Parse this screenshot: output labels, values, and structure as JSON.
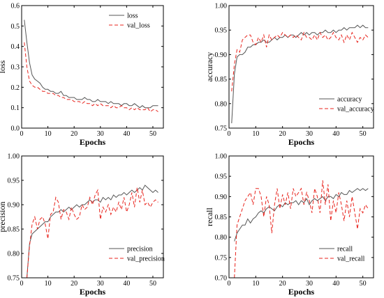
{
  "chart_data": [
    {
      "type": "line",
      "xlabel": "Epochs",
      "ylabel": "loss",
      "xlim": [
        0,
        54
      ],
      "ylim": [
        0.0,
        0.6
      ],
      "xticks": [
        0,
        10,
        20,
        30,
        40,
        50
      ],
      "yticks": [
        0.0,
        0.1,
        0.2,
        0.3,
        0.4,
        0.5,
        0.6
      ],
      "ytick_labels": [
        "0.0",
        "0.1",
        "0.2",
        "0.3",
        "0.4",
        "0.5",
        "0.6"
      ],
      "legend_position": "top-right",
      "series": [
        {
          "name": "loss",
          "color": "#555555",
          "style": "solid",
          "x": [
            1,
            2,
            3,
            4,
            5,
            6,
            7,
            8,
            9,
            10,
            11,
            12,
            13,
            14,
            15,
            16,
            17,
            18,
            19,
            20,
            21,
            22,
            23,
            24,
            25,
            26,
            27,
            28,
            29,
            30,
            31,
            32,
            33,
            34,
            35,
            36,
            37,
            38,
            39,
            40,
            41,
            42,
            43,
            44,
            45,
            46,
            47,
            48,
            49,
            50,
            51,
            52
          ],
          "y": [
            0.53,
            0.42,
            0.32,
            0.26,
            0.24,
            0.23,
            0.22,
            0.2,
            0.19,
            0.19,
            0.18,
            0.18,
            0.17,
            0.17,
            0.18,
            0.16,
            0.16,
            0.15,
            0.15,
            0.15,
            0.14,
            0.14,
            0.14,
            0.15,
            0.14,
            0.14,
            0.13,
            0.13,
            0.14,
            0.13,
            0.13,
            0.13,
            0.12,
            0.13,
            0.12,
            0.12,
            0.12,
            0.11,
            0.12,
            0.12,
            0.11,
            0.11,
            0.12,
            0.11,
            0.1,
            0.11,
            0.1,
            0.1,
            0.1,
            0.11,
            0.11,
            0.11
          ]
        },
        {
          "name": "val_loss",
          "color": "#e8231c",
          "style": "dashed",
          "x": [
            1,
            2,
            3,
            4,
            5,
            6,
            7,
            8,
            9,
            10,
            11,
            12,
            13,
            14,
            15,
            16,
            17,
            18,
            19,
            20,
            21,
            22,
            23,
            24,
            25,
            26,
            27,
            28,
            29,
            30,
            31,
            32,
            33,
            34,
            35,
            36,
            37,
            38,
            39,
            40,
            41,
            42,
            43,
            44,
            45,
            46,
            47,
            48,
            49,
            50,
            51,
            52
          ],
          "y": [
            0.42,
            0.3,
            0.23,
            0.21,
            0.2,
            0.2,
            0.19,
            0.18,
            0.18,
            0.17,
            0.17,
            0.17,
            0.16,
            0.16,
            0.15,
            0.15,
            0.14,
            0.14,
            0.14,
            0.13,
            0.13,
            0.13,
            0.12,
            0.13,
            0.12,
            0.12,
            0.11,
            0.12,
            0.11,
            0.12,
            0.11,
            0.11,
            0.11,
            0.1,
            0.11,
            0.1,
            0.1,
            0.11,
            0.1,
            0.1,
            0.09,
            0.1,
            0.09,
            0.1,
            0.09,
            0.09,
            0.09,
            0.1,
            0.08,
            0.09,
            0.09,
            0.08
          ]
        }
      ]
    },
    {
      "type": "line",
      "xlabel": "Epochs",
      "ylabel": "accuracy",
      "xlim": [
        0,
        54
      ],
      "ylim": [
        0.75,
        1.0
      ],
      "xticks": [
        0,
        10,
        20,
        30,
        40,
        50
      ],
      "yticks": [
        0.75,
        0.8,
        0.85,
        0.9,
        0.95,
        1.0
      ],
      "ytick_labels": [
        "0.75",
        "0.80",
        "0.85",
        "0.90",
        "0.95",
        "1.00"
      ],
      "legend_position": "bottom-right",
      "series": [
        {
          "name": "accuracy",
          "color": "#555555",
          "style": "solid",
          "x": [
            1,
            2,
            3,
            4,
            5,
            6,
            7,
            8,
            9,
            10,
            11,
            12,
            13,
            14,
            15,
            16,
            17,
            18,
            19,
            20,
            21,
            22,
            23,
            24,
            25,
            26,
            27,
            28,
            29,
            30,
            31,
            32,
            33,
            34,
            35,
            36,
            37,
            38,
            39,
            40,
            41,
            42,
            43,
            44,
            45,
            46,
            47,
            48,
            49,
            50,
            51,
            52
          ],
          "y": [
            0.76,
            0.86,
            0.895,
            0.9,
            0.9,
            0.905,
            0.915,
            0.915,
            0.92,
            0.92,
            0.925,
            0.925,
            0.93,
            0.925,
            0.925,
            0.93,
            0.935,
            0.93,
            0.935,
            0.935,
            0.94,
            0.935,
            0.94,
            0.94,
            0.935,
            0.94,
            0.945,
            0.94,
            0.945,
            0.94,
            0.945,
            0.945,
            0.94,
            0.945,
            0.945,
            0.95,
            0.945,
            0.945,
            0.95,
            0.945,
            0.95,
            0.95,
            0.955,
            0.95,
            0.955,
            0.955,
            0.955,
            0.96,
            0.955,
            0.96,
            0.955,
            0.955
          ]
        },
        {
          "name": "val_accuracy",
          "color": "#e8231c",
          "style": "dashed",
          "x": [
            1,
            2,
            3,
            4,
            5,
            6,
            7,
            8,
            9,
            10,
            11,
            12,
            13,
            14,
            15,
            16,
            17,
            18,
            19,
            20,
            21,
            22,
            23,
            24,
            25,
            26,
            27,
            28,
            29,
            30,
            31,
            32,
            33,
            34,
            35,
            36,
            37,
            38,
            39,
            40,
            41,
            42,
            43,
            44,
            45,
            46,
            47,
            48,
            49,
            50,
            51,
            52
          ],
          "y": [
            0.825,
            0.88,
            0.91,
            0.905,
            0.93,
            0.935,
            0.94,
            0.94,
            0.925,
            0.92,
            0.935,
            0.925,
            0.94,
            0.915,
            0.94,
            0.93,
            0.935,
            0.94,
            0.935,
            0.945,
            0.94,
            0.935,
            0.94,
            0.935,
            0.94,
            0.935,
            0.93,
            0.945,
            0.935,
            0.935,
            0.93,
            0.94,
            0.93,
            0.945,
            0.935,
            0.94,
            0.93,
            0.935,
            0.945,
            0.935,
            0.93,
            0.94,
            0.925,
            0.94,
            0.93,
            0.945,
            0.935,
            0.925,
            0.935,
            0.93,
            0.94,
            0.935
          ]
        }
      ]
    },
    {
      "type": "line",
      "xlabel": "Epochs",
      "ylabel": "precision",
      "xlim": [
        0,
        54
      ],
      "ylim": [
        0.75,
        1.0
      ],
      "xticks": [
        0,
        10,
        20,
        30,
        40,
        50
      ],
      "yticks": [
        0.75,
        0.8,
        0.85,
        0.9,
        0.95,
        1.0
      ],
      "ytick_labels": [
        "0.75",
        "0.80",
        "0.85",
        "0.90",
        "0.95",
        "1.00"
      ],
      "legend_position": "bottom-right",
      "series": [
        {
          "name": "precision",
          "color": "#555555",
          "style": "solid",
          "x": [
            2,
            3,
            4,
            5,
            6,
            7,
            8,
            9,
            10,
            11,
            12,
            13,
            14,
            15,
            16,
            17,
            18,
            19,
            20,
            21,
            22,
            23,
            24,
            25,
            26,
            27,
            28,
            29,
            30,
            31,
            32,
            33,
            34,
            35,
            36,
            37,
            38,
            39,
            40,
            41,
            42,
            43,
            44,
            45,
            46,
            47,
            48,
            49,
            50,
            51,
            52
          ],
          "y": [
            0.75,
            0.82,
            0.84,
            0.845,
            0.85,
            0.855,
            0.86,
            0.865,
            0.865,
            0.875,
            0.88,
            0.885,
            0.885,
            0.89,
            0.885,
            0.89,
            0.895,
            0.89,
            0.895,
            0.9,
            0.895,
            0.9,
            0.9,
            0.905,
            0.91,
            0.905,
            0.91,
            0.91,
            0.905,
            0.915,
            0.91,
            0.915,
            0.91,
            0.92,
            0.915,
            0.92,
            0.92,
            0.925,
            0.92,
            0.925,
            0.93,
            0.925,
            0.93,
            0.935,
            0.93,
            0.94,
            0.935,
            0.93,
            0.925,
            0.93,
            0.925
          ]
        },
        {
          "name": "val_precision",
          "color": "#e8231c",
          "style": "dashed",
          "x": [
            2,
            3,
            4,
            5,
            6,
            7,
            8,
            9,
            10,
            11,
            12,
            13,
            14,
            15,
            16,
            17,
            18,
            19,
            20,
            21,
            22,
            23,
            24,
            25,
            26,
            27,
            28,
            29,
            30,
            31,
            32,
            33,
            34,
            35,
            36,
            37,
            38,
            39,
            40,
            41,
            42,
            43,
            44,
            45,
            46,
            47,
            48,
            49,
            50,
            51,
            52
          ],
          "y": [
            0.75,
            0.815,
            0.86,
            0.875,
            0.85,
            0.87,
            0.875,
            0.86,
            0.83,
            0.88,
            0.885,
            0.915,
            0.905,
            0.87,
            0.89,
            0.885,
            0.87,
            0.895,
            0.88,
            0.87,
            0.875,
            0.9,
            0.89,
            0.895,
            0.915,
            0.9,
            0.92,
            0.93,
            0.87,
            0.895,
            0.885,
            0.9,
            0.88,
            0.895,
            0.885,
            0.905,
            0.89,
            0.915,
            0.885,
            0.9,
            0.925,
            0.895,
            0.935,
            0.905,
            0.93,
            0.9,
            0.905,
            0.895,
            0.905,
            0.91,
            0.905
          ]
        }
      ]
    },
    {
      "type": "line",
      "xlabel": "Epochs",
      "ylabel": "recall",
      "xlim": [
        0,
        54
      ],
      "ylim": [
        0.7,
        1.0
      ],
      "xticks": [
        0,
        10,
        20,
        30,
        40,
        50
      ],
      "yticks": [
        0.7,
        0.75,
        0.8,
        0.85,
        0.9,
        0.95,
        1.0
      ],
      "ytick_labels": [
        "0.70",
        "0.75",
        "0.80",
        "0.85",
        "0.90",
        "0.95",
        "1.00"
      ],
      "legend_position": "bottom-right",
      "series": [
        {
          "name": "recall",
          "color": "#555555",
          "style": "solid",
          "x": [
            2,
            3,
            4,
            5,
            6,
            7,
            8,
            9,
            10,
            11,
            12,
            13,
            14,
            15,
            16,
            17,
            18,
            19,
            20,
            21,
            22,
            23,
            24,
            25,
            26,
            27,
            28,
            29,
            30,
            31,
            32,
            33,
            34,
            35,
            36,
            37,
            38,
            39,
            40,
            41,
            42,
            43,
            44,
            45,
            46,
            47,
            48,
            49,
            50,
            51,
            52
          ],
          "y": [
            0.79,
            0.81,
            0.82,
            0.83,
            0.83,
            0.845,
            0.835,
            0.845,
            0.85,
            0.86,
            0.865,
            0.86,
            0.87,
            0.875,
            0.87,
            0.865,
            0.875,
            0.88,
            0.875,
            0.885,
            0.88,
            0.885,
            0.885,
            0.89,
            0.88,
            0.89,
            0.885,
            0.895,
            0.88,
            0.89,
            0.895,
            0.89,
            0.895,
            0.9,
            0.89,
            0.9,
            0.9,
            0.895,
            0.905,
            0.9,
            0.91,
            0.905,
            0.905,
            0.915,
            0.91,
            0.915,
            0.92,
            0.915,
            0.92,
            0.915,
            0.92
          ]
        },
        {
          "name": "val_recall",
          "color": "#e8231c",
          "style": "dashed",
          "x": [
            2,
            3,
            4,
            5,
            6,
            7,
            8,
            9,
            10,
            11,
            12,
            13,
            14,
            15,
            16,
            17,
            18,
            19,
            20,
            21,
            22,
            23,
            24,
            25,
            26,
            27,
            28,
            29,
            30,
            31,
            32,
            33,
            34,
            35,
            36,
            37,
            38,
            39,
            40,
            41,
            42,
            43,
            44,
            45,
            46,
            47,
            48,
            49,
            50,
            51,
            52
          ],
          "y": [
            0.7,
            0.83,
            0.85,
            0.87,
            0.89,
            0.9,
            0.91,
            0.88,
            0.92,
            0.92,
            0.9,
            0.85,
            0.9,
            0.88,
            0.81,
            0.88,
            0.92,
            0.87,
            0.905,
            0.88,
            0.91,
            0.87,
            0.92,
            0.9,
            0.91,
            0.92,
            0.88,
            0.91,
            0.89,
            0.86,
            0.92,
            0.9,
            0.86,
            0.94,
            0.88,
            0.93,
            0.84,
            0.89,
            0.86,
            0.91,
            0.88,
            0.84,
            0.89,
            0.85,
            0.9,
            0.86,
            0.82,
            0.87,
            0.86,
            0.88,
            0.87
          ]
        }
      ]
    }
  ]
}
